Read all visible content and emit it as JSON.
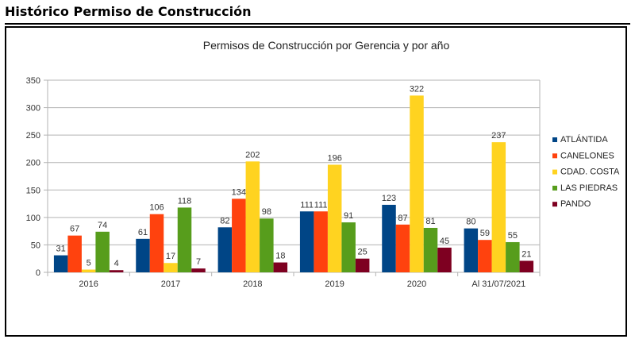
{
  "page": {
    "heading": "Histórico Permiso de Construcción"
  },
  "chart_data": {
    "type": "bar",
    "title": "Permisos de Construcción por Gerencia y por año",
    "xlabel": "",
    "ylabel": "",
    "ylim": [
      0,
      350
    ],
    "yticks": [
      0,
      50,
      100,
      150,
      200,
      250,
      300,
      350
    ],
    "grid": true,
    "legend_position": "right",
    "categories": [
      "2016",
      "2017",
      "2018",
      "2019",
      "2020",
      "Al 31/07/2021"
    ],
    "series": [
      {
        "name": "ATLÁNTIDA",
        "color": "#004586",
        "values": [
          31,
          61,
          82,
          111,
          123,
          80
        ]
      },
      {
        "name": "CANELONES",
        "color": "#ff420e",
        "values": [
          67,
          106,
          134,
          111,
          87,
          59
        ]
      },
      {
        "name": "CDAD. COSTA",
        "color": "#ffd320",
        "values": [
          5,
          17,
          202,
          196,
          322,
          237
        ]
      },
      {
        "name": "LAS PIEDRAS",
        "color": "#579d1c",
        "values": [
          74,
          118,
          98,
          91,
          81,
          55
        ]
      },
      {
        "name": "PANDO",
        "color": "#7e0021",
        "values": [
          4,
          7,
          18,
          25,
          45,
          21
        ]
      }
    ]
  }
}
